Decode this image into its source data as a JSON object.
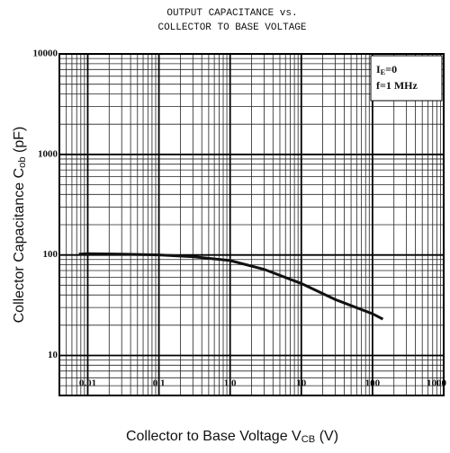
{
  "chart_data": {
    "type": "line",
    "title": [
      "OUTPUT CAPACITANCE vs.",
      "COLLECTOR TO BASE VOLTAGE"
    ],
    "x_label": {
      "text": "Collector to Base Voltage  V",
      "sub": "CB",
      "tail": "  (V)"
    },
    "y_label": {
      "text": "Collector Capacitance  C",
      "sub": "ob",
      "tail": "  (pF)"
    },
    "annotations": [
      {
        "text": "I",
        "sub": "E",
        "tail": "=0"
      },
      {
        "text": "f=1 MHz"
      }
    ],
    "log_x": true,
    "log_y": true,
    "grid": true,
    "xlim": [
      0.004,
      1000
    ],
    "ylim": [
      4,
      10000
    ],
    "xticks": [
      {
        "value": 0.01,
        "label": "0.01"
      },
      0.1,
      {
        "value": 1,
        "label": "1.0"
      },
      10,
      100,
      1000
    ],
    "yticks": [
      10,
      100,
      1000,
      10000
    ],
    "series": [
      {
        "color": "#111111",
        "x": [
          0.0075,
          0.01,
          0.03,
          0.1,
          0.3,
          1,
          3,
          10,
          30,
          100,
          140
        ],
        "values": [
          102,
          103,
          102,
          100,
          96,
          88,
          72,
          52,
          36,
          26,
          23
        ]
      }
    ]
  }
}
